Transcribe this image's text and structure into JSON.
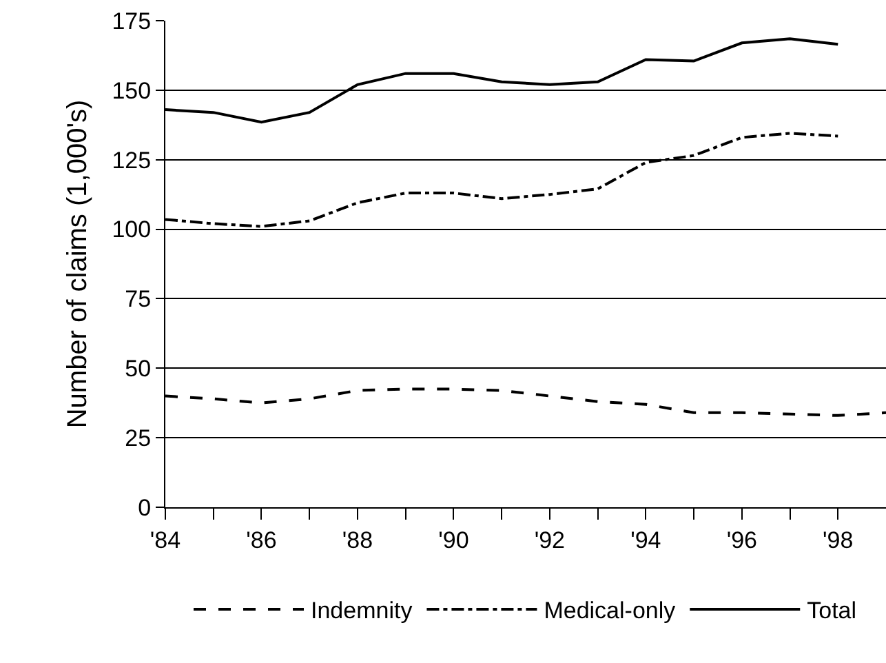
{
  "chart_data": {
    "type": "line",
    "ylabel": "Number of claims (1,000's)",
    "x": [
      1984,
      1985,
      1986,
      1987,
      1988,
      1989,
      1990,
      1991,
      1992,
      1993,
      1994,
      1995,
      1996,
      1997,
      1998
    ],
    "series": [
      {
        "name": "Indemnity",
        "color": "#000000",
        "line_style": "dashed",
        "x": [
          1984,
          1985,
          1986,
          1987,
          1988,
          1989,
          1990,
          1991,
          1992,
          1993,
          1994,
          1995,
          1996,
          1997,
          1998,
          1999
        ],
        "values": [
          40,
          39,
          37.5,
          39,
          42,
          42.5,
          42.5,
          42,
          40,
          38,
          37,
          34,
          34,
          33.5,
          33,
          34
        ]
      },
      {
        "name": "Medical-only",
        "color": "#000000",
        "line_style": "dashdot",
        "values": [
          103.5,
          102,
          101,
          103,
          109.5,
          113,
          113,
          111,
          112.5,
          114.5,
          124,
          126.5,
          133,
          134.5,
          133.5
        ]
      },
      {
        "name": "Total",
        "color": "#000000",
        "line_style": "solid",
        "values": [
          143,
          142,
          138.5,
          142,
          152,
          156,
          156,
          153,
          152,
          153,
          161,
          160.5,
          167,
          168.5,
          166.5
        ]
      }
    ],
    "xlim": [
      1984,
      1999
    ],
    "xticks": [
      {
        "value": 1984,
        "label": "'84"
      },
      {
        "value": 1985,
        "label": null
      },
      {
        "value": 1986,
        "label": "'86"
      },
      {
        "value": 1987,
        "label": null
      },
      {
        "value": 1988,
        "label": "'88"
      },
      {
        "value": 1989,
        "label": null
      },
      {
        "value": 1990,
        "label": "'90"
      },
      {
        "value": 1991,
        "label": null
      },
      {
        "value": 1992,
        "label": "'92"
      },
      {
        "value": 1993,
        "label": null
      },
      {
        "value": 1994,
        "label": "'94"
      },
      {
        "value": 1995,
        "label": null
      },
      {
        "value": 1996,
        "label": "'96"
      },
      {
        "value": 1997,
        "label": null
      },
      {
        "value": 1998,
        "label": "'98"
      }
    ],
    "ylim": [
      0,
      175
    ],
    "yticks": [
      0,
      25,
      50,
      75,
      100,
      125,
      150,
      175
    ],
    "grid": "y",
    "legend": "bottom",
    "marker": "none"
  }
}
